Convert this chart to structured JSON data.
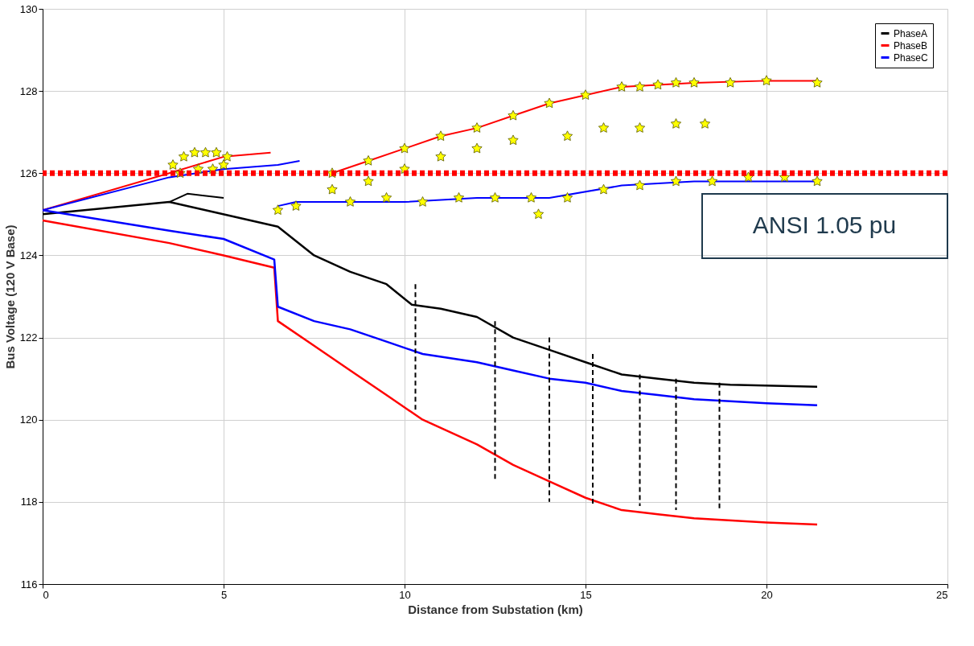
{
  "chart_data": {
    "type": "line",
    "xlabel": "Distance from Substation (km)",
    "ylabel": "Bus Voltage (120 V Base)",
    "xlim": [
      0,
      25
    ],
    "xticks": [
      0,
      5,
      10,
      15,
      20,
      25
    ],
    "ylim": [
      116,
      130
    ],
    "yticks": [
      116,
      118,
      120,
      122,
      124,
      126,
      128,
      130
    ],
    "grid": true,
    "legend": "top right",
    "ref_lines": [
      {
        "axis": "y",
        "value": 126,
        "label": "ANSI 1.05 pu",
        "color": "#ff0000",
        "line_style": "dashed"
      }
    ],
    "series": [
      {
        "name": "PhaseA",
        "color": "#000000",
        "x": [
          0,
          3.5,
          4.5,
          5.5,
          6.5,
          7.5,
          8.5,
          9.5,
          10.2,
          11,
          12,
          13,
          14,
          15,
          16,
          17,
          18,
          19,
          21.4
        ],
        "values": [
          125.0,
          125.3,
          125.1,
          124.9,
          124.7,
          124.0,
          123.6,
          123.3,
          122.8,
          122.7,
          122.5,
          122.0,
          121.7,
          121.4,
          121.1,
          121.0,
          120.9,
          120.85,
          120.8
        ]
      },
      {
        "name": "PhaseB",
        "color": "#ff0000",
        "x": [
          0,
          3.5,
          5,
          6.4,
          6.5,
          7.5,
          8.5,
          9.5,
          10.5,
          12,
          13,
          14,
          15,
          16,
          17,
          18,
          20,
          21.4
        ],
        "values": [
          124.85,
          124.3,
          124.0,
          123.7,
          122.4,
          121.8,
          121.2,
          120.6,
          120.0,
          119.4,
          118.9,
          118.5,
          118.1,
          117.8,
          117.7,
          117.6,
          117.5,
          117.45
        ]
      },
      {
        "name": "PhaseC",
        "color": "#0000ff",
        "x": [
          0,
          3.5,
          5,
          6.4,
          6.5,
          7.5,
          8.5,
          9.5,
          10.5,
          12,
          13,
          14,
          15,
          16,
          17,
          18,
          20,
          21.4
        ],
        "values": [
          125.1,
          124.6,
          124.4,
          123.9,
          122.75,
          122.4,
          122.2,
          121.9,
          121.6,
          121.4,
          121.2,
          121.0,
          120.9,
          120.7,
          120.6,
          120.5,
          120.4,
          120.35
        ]
      },
      {
        "color": "#000000",
        "x": [
          3.5,
          4,
          5
        ],
        "values": [
          125.3,
          125.5,
          125.4
        ]
      },
      {
        "color": "#ff0000",
        "x": [
          0,
          3.5,
          5,
          6.3
        ],
        "values": [
          125.1,
          126.0,
          126.4,
          126.5
        ]
      },
      {
        "color": "#ff0000",
        "x": [
          8,
          9,
          10,
          11,
          12,
          13,
          14,
          15,
          16,
          17,
          18,
          20,
          21.4
        ],
        "values": [
          126.0,
          126.3,
          126.6,
          126.9,
          127.1,
          127.4,
          127.7,
          127.9,
          128.1,
          128.15,
          128.2,
          128.25,
          128.25
        ]
      },
      {
        "color": "#0000ff",
        "x": [
          0,
          3.5,
          5,
          6.5,
          7.1
        ],
        "values": [
          125.1,
          125.9,
          126.1,
          126.2,
          126.3
        ]
      },
      {
        "color": "#0000ff",
        "x": [
          6.5,
          7,
          10,
          12,
          14,
          16,
          18,
          21.4
        ],
        "values": [
          125.2,
          125.3,
          125.3,
          125.4,
          125.4,
          125.7,
          125.8,
          125.8
        ]
      },
      {
        "color": "#000000",
        "line_style": "dashed",
        "x": [
          10.3,
          10.3
        ],
        "values": [
          123.3,
          120.2
        ]
      },
      {
        "color": "#000000",
        "line_style": "dashed",
        "x": [
          12.5,
          12.5
        ],
        "values": [
          122.4,
          118.5
        ]
      },
      {
        "color": "#000000",
        "line_style": "dashed",
        "x": [
          14,
          14
        ],
        "values": [
          122.0,
          118.0
        ]
      },
      {
        "color": "#000000",
        "line_style": "dashed",
        "x": [
          15.2,
          15.2
        ],
        "values": [
          121.6,
          117.9
        ]
      },
      {
        "color": "#000000",
        "line_style": "dashed",
        "x": [
          16.5,
          16.5
        ],
        "values": [
          121.1,
          117.9
        ]
      },
      {
        "color": "#000000",
        "line_style": "dashed",
        "x": [
          17.5,
          17.5
        ],
        "values": [
          121.0,
          117.8
        ]
      },
      {
        "color": "#000000",
        "line_style": "dashed",
        "x": [
          18.7,
          18.7
        ],
        "values": [
          120.9,
          117.8
        ]
      },
      {
        "type": "scatter",
        "marker": "star",
        "color": "#ffff00",
        "x": [
          3.6,
          3.9,
          4.2,
          4.5,
          4.8,
          5.1,
          3.8,
          4.3,
          4.7,
          5.0,
          8,
          9,
          10,
          11,
          12,
          13,
          14,
          15,
          16,
          16.5,
          17,
          17.5,
          18,
          19,
          20,
          21.4,
          8,
          9,
          10,
          11,
          12,
          13,
          14.5,
          15.5,
          16.5,
          17.5,
          18.3,
          8.5,
          9.5,
          10.5,
          11.5,
          12.5,
          13.5,
          14.5,
          15.5,
          16.5,
          17.5,
          18.5,
          19.5,
          20.5,
          21.4,
          13.7,
          7,
          6.5
        ],
        "values": [
          126.2,
          126.4,
          126.5,
          126.5,
          126.5,
          126.4,
          126.0,
          126.1,
          126.1,
          126.2,
          126.0,
          126.3,
          126.6,
          126.9,
          127.1,
          127.4,
          127.7,
          127.9,
          128.1,
          128.1,
          128.15,
          128.2,
          128.2,
          128.2,
          128.25,
          128.2,
          125.6,
          125.8,
          126.1,
          126.4,
          126.6,
          126.8,
          126.9,
          127.1,
          127.1,
          127.2,
          127.2,
          125.3,
          125.4,
          125.3,
          125.4,
          125.4,
          125.4,
          125.4,
          125.6,
          125.7,
          125.8,
          125.8,
          125.9,
          125.9,
          125.8,
          125.0,
          125.2,
          125.1
        ]
      }
    ]
  }
}
